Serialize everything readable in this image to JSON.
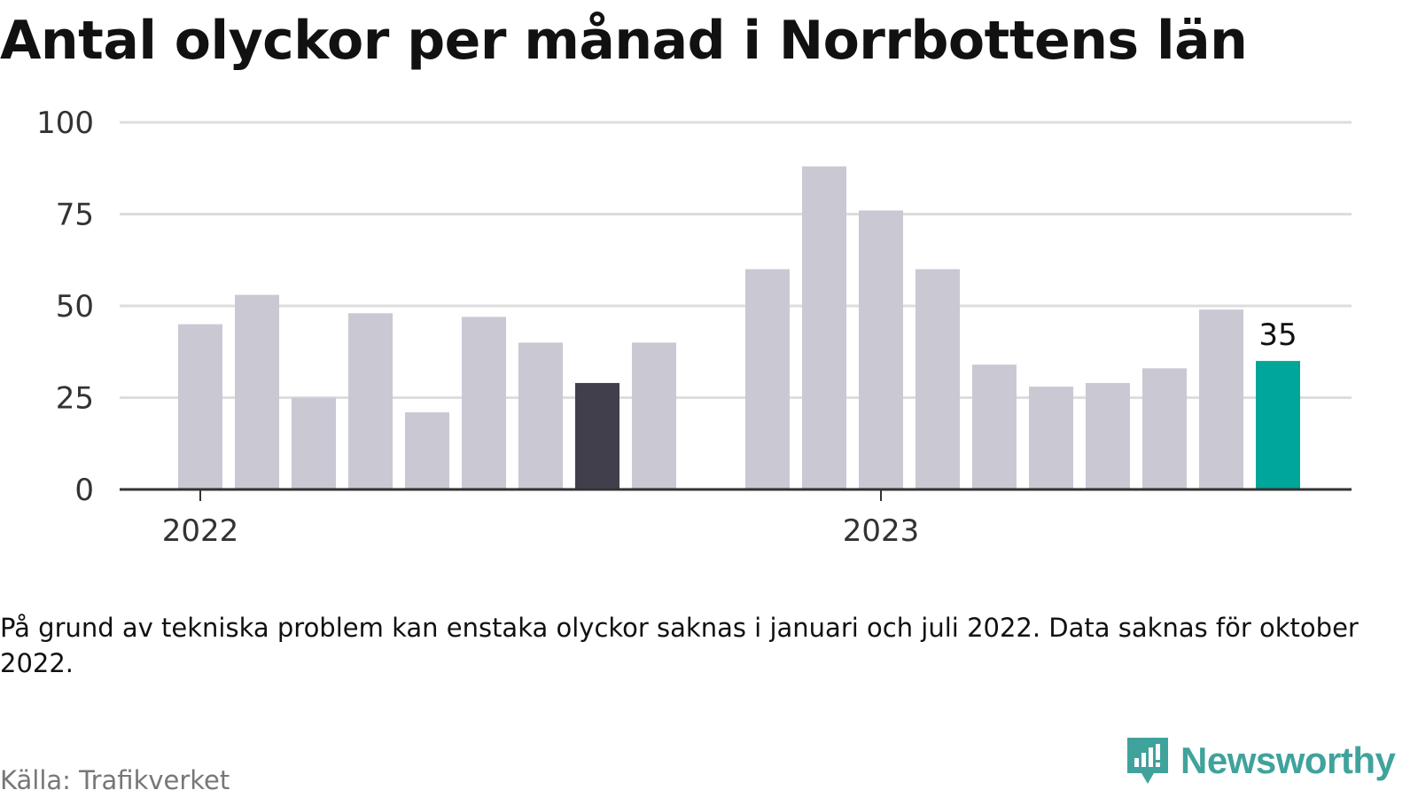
{
  "title": "Antal olyckor per månad i Norrbottens län",
  "note": "På grund av tekniska problem kan enstaka olyckor saknas i januari och juli 2022. Data saknas för oktober 2022.",
  "source": "Källa: Trafikverket",
  "brand": "Newsworthy",
  "colors": {
    "bar_default": "#c9c8d3",
    "bar_dark": "#403f4b",
    "bar_highlight": "#00a699",
    "grid": "#dddddd",
    "axis": "#333333",
    "brand": "#3fa39c"
  },
  "chart_data": {
    "type": "bar",
    "title": "",
    "xlabel": "",
    "ylabel": "",
    "ylim": [
      0,
      100
    ],
    "yticks": [
      0,
      25,
      50,
      75,
      100
    ],
    "grid": true,
    "x_tick_labels": [
      {
        "label": "2022",
        "at": "2022-01"
      },
      {
        "label": "2023",
        "at": "2023-01"
      }
    ],
    "categories": [
      "2022-01",
      "2022-02",
      "2022-03",
      "2022-04",
      "2022-05",
      "2022-06",
      "2022-07",
      "2022-08",
      "2022-09",
      "2022-10",
      "2022-11",
      "2022-12",
      "2023-01",
      "2023-02",
      "2023-03",
      "2023-04",
      "2023-05",
      "2023-06",
      "2023-07",
      "2023-08",
      "2023-09",
      "2023-10",
      "2023-11",
      "2023-12"
    ],
    "values": [
      45,
      53,
      25,
      48,
      21,
      47,
      40,
      29,
      40,
      null,
      60,
      88,
      76,
      60,
      34,
      28,
      29,
      33,
      49,
      35,
      null,
      null,
      null,
      null
    ],
    "highlight": {
      "dark": "2022-08",
      "accent": "2023-08"
    },
    "annotations": [
      {
        "category": "2023-08",
        "text": "35"
      }
    ]
  }
}
